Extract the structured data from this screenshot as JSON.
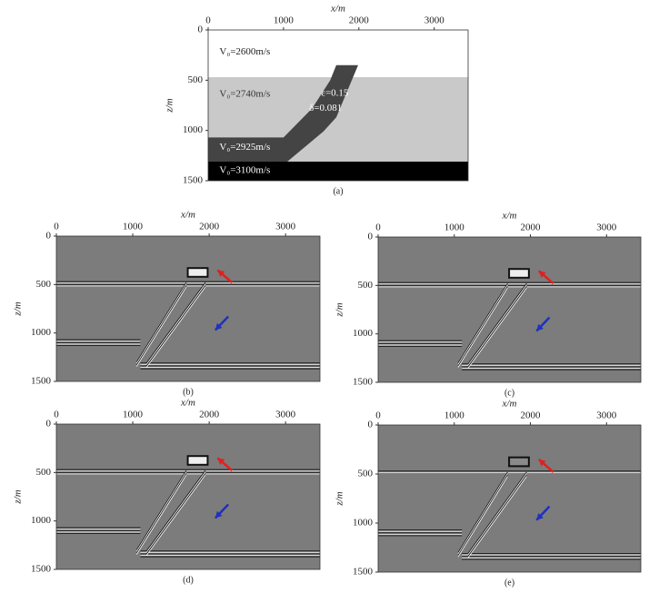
{
  "panels": [
    {
      "caption": "(a)",
      "x_label": "x/m",
      "z_label": "z/m",
      "xlim": [
        0,
        3450
      ],
      "zlim": [
        0,
        1500
      ],
      "xticks": [
        0,
        1000,
        2000,
        3000
      ],
      "zticks": [
        0,
        500,
        1000,
        1500
      ],
      "annotations": [
        "V₀=2600m/s",
        "V₀=2740m/s",
        "ε=0.15",
        "δ=0.081",
        "V₀=2925m/s",
        "V₀=3100m/s"
      ]
    },
    {
      "caption": "(b)",
      "x_label": "x/m",
      "z_label": "z/m",
      "xlim": [
        0,
        3450
      ],
      "zlim": [
        0,
        1500
      ],
      "xticks": [
        0,
        1000,
        2000,
        3000
      ],
      "zticks": [
        0,
        500,
        1000,
        1500
      ]
    },
    {
      "caption": "(c)",
      "x_label": "x/m",
      "z_label": "z/m",
      "xlim": [
        0,
        3450
      ],
      "zlim": [
        0,
        1500
      ],
      "xticks": [
        0,
        1000,
        2000,
        3000
      ],
      "zticks": [
        0,
        500,
        1000,
        1500
      ]
    },
    {
      "caption": "(d)",
      "x_label": "x/m",
      "z_label": "z/m",
      "xlim": [
        0,
        3450
      ],
      "zlim": [
        0,
        1500
      ],
      "xticks": [
        0,
        1000,
        2000,
        3000
      ],
      "zticks": [
        0,
        500,
        1000,
        1500
      ]
    },
    {
      "caption": "(e)",
      "x_label": "x/m",
      "z_label": "z/m",
      "xlim": [
        0,
        3450
      ],
      "zlim": [
        0,
        1500
      ],
      "xticks": [
        0,
        1000,
        2000,
        3000
      ],
      "zticks": [
        0,
        500,
        1000,
        1500
      ]
    }
  ]
}
